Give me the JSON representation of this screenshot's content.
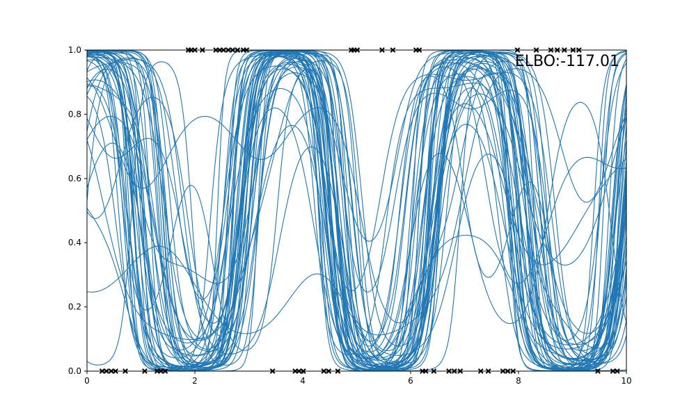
{
  "chart_data": {
    "type": "line",
    "title": "",
    "xlabel": "",
    "ylabel": "",
    "xlim": [
      0,
      10
    ],
    "ylim": [
      0,
      1
    ],
    "x_ticks": [
      "0",
      "2",
      "4",
      "6",
      "8",
      "10"
    ],
    "y_ticks": [
      "0.0",
      "0.2",
      "0.4",
      "0.6",
      "0.8",
      "1.0"
    ],
    "annotation": "ELBO:-117.01",
    "line_color": "#1f77b4",
    "marker_color": "#000000",
    "sample_count": 50,
    "observations": {
      "class1_x": [
        1.88,
        1.93,
        2.0,
        2.14,
        2.39,
        2.46,
        2.53,
        2.62,
        2.7,
        2.79,
        2.9,
        2.96,
        4.9,
        4.95,
        5.01,
        5.47,
        5.67,
        6.1,
        6.16,
        7.98,
        8.33,
        8.6,
        8.72,
        8.85,
        9.01,
        9.12
      ],
      "class0_x": [
        0.28,
        0.36,
        0.45,
        0.53,
        0.71,
        1.07,
        1.3,
        1.37,
        1.45,
        3.44,
        3.86,
        3.93,
        4.01,
        4.39,
        4.48,
        4.65,
        6.22,
        6.28,
        6.43,
        6.71,
        6.81,
        6.92,
        7.3,
        7.44,
        7.71,
        7.8,
        7.9,
        9.47,
        9.75,
        9.83
      ]
    }
  }
}
